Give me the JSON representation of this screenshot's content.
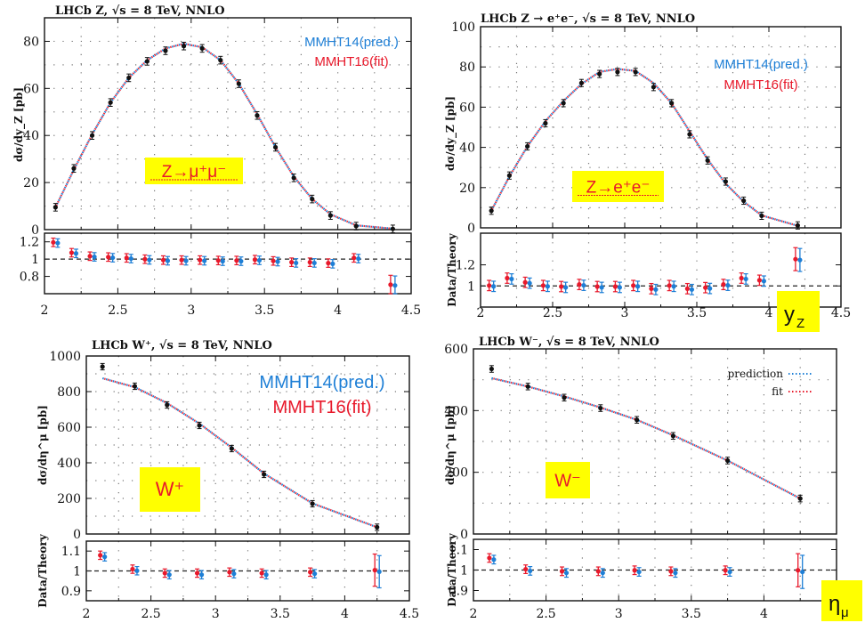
{
  "colors": {
    "pred": "#1e7fd6",
    "fit": "#e8192b",
    "badge": "#ffff00",
    "data": "#111111"
  },
  "badges": {
    "yz": "y",
    "yz_sub": "Z",
    "eta": "η",
    "eta_sub": "μ"
  },
  "chart_data": [
    {
      "id": "zmumu",
      "type": "line",
      "title": "LHCb Z, √s = 8 TeV, NNLO",
      "ylabel": "dσ/dy_Z [pb]",
      "ratio_ylabel": "",
      "xlim": [
        2,
        4.5
      ],
      "ylim": [
        0,
        90
      ],
      "ratio_ylim": [
        0.6,
        1.3
      ],
      "xticks": [
        "2",
        "2.5",
        "3",
        "3.5",
        "4",
        "4.5"
      ],
      "yticks": [
        "0",
        "20",
        "40",
        "60",
        "80"
      ],
      "ratio_yticks": [
        "0.8",
        "1",
        "1.2"
      ],
      "yticks_vals": [
        0,
        20,
        40,
        60,
        80
      ],
      "ratio_yticks_vals": [
        0.8,
        1,
        1.2
      ],
      "legend": [
        {
          "label": "MMHT14(pred.)",
          "color": "pred"
        },
        {
          "label": "MMHT16(fit)",
          "color": "fit"
        }
      ],
      "legend_style": "color",
      "process": "Z→μ⁺μ⁻",
      "x": [
        2.075,
        2.2,
        2.325,
        2.45,
        2.575,
        2.7,
        2.825,
        2.95,
        3.075,
        3.2,
        3.325,
        3.45,
        3.575,
        3.7,
        3.825,
        3.95,
        4.125,
        4.375
      ],
      "data": [
        9.5,
        26,
        40,
        54,
        64.5,
        71.5,
        76,
        78,
        77,
        72,
        62,
        48.5,
        35,
        22,
        13,
        6,
        1.5,
        0.3
      ],
      "theory": [
        9.5,
        25.5,
        40.5,
        54,
        64.5,
        72,
        77,
        79,
        77.5,
        72,
        62,
        49,
        35,
        22.5,
        13,
        6.5,
        1.8,
        0.4
      ],
      "ratio": [
        1.19,
        1.07,
        1.03,
        1.02,
        1.01,
        0.995,
        0.985,
        0.985,
        0.985,
        0.98,
        0.98,
        0.99,
        0.975,
        0.96,
        0.96,
        0.95,
        1.01,
        0.7
      ]
    },
    {
      "id": "zee",
      "type": "line",
      "title": "LHCb Z → e⁺e⁻, √s = 8 TeV, NNLO",
      "ylabel": "dσ/dy_Z [pb]",
      "ratio_ylabel": "Data/Theory",
      "xlim": [
        2,
        4.5
      ],
      "ylim": [
        0,
        100
      ],
      "ratio_ylim": [
        0.8,
        1.5
      ],
      "xticks": [
        "2",
        "2.5",
        "3",
        "3.5",
        "4",
        "4.5"
      ],
      "yticks": [
        "0",
        "20",
        "40",
        "60",
        "80",
        "100"
      ],
      "ratio_yticks": [
        "1",
        "1.2"
      ],
      "yticks_vals": [
        0,
        20,
        40,
        60,
        80,
        100
      ],
      "ratio_yticks_vals": [
        1,
        1.2
      ],
      "legend": [
        {
          "label": "MMHT14(pred.)",
          "color": "pred"
        },
        {
          "label": "MMHT16(fit)",
          "color": "fit"
        }
      ],
      "legend_style": "color",
      "process": "Z→e⁺e⁻",
      "x": [
        2.075,
        2.2,
        2.325,
        2.45,
        2.575,
        2.7,
        2.825,
        2.95,
        3.075,
        3.2,
        3.325,
        3.45,
        3.575,
        3.7,
        3.825,
        3.95,
        4.2
      ],
      "data": [
        8.5,
        26,
        40.5,
        52,
        62,
        72,
        76.5,
        77.5,
        77.5,
        70,
        62,
        46.5,
        33.5,
        23,
        13.5,
        6,
        1.2
      ],
      "theory": [
        8.5,
        25.5,
        40.5,
        53,
        63,
        71.5,
        77.5,
        79,
        78,
        72,
        62,
        48,
        34,
        22,
        13,
        6.2,
        1.0
      ],
      "ratio": [
        1.0,
        1.07,
        1.03,
        1.0,
        0.99,
        1.01,
        0.99,
        0.99,
        1.0,
        0.97,
        1.0,
        0.97,
        0.98,
        1.01,
        1.07,
        1.05,
        1.25
      ]
    },
    {
      "id": "wplus",
      "type": "line",
      "title": "LHCb W⁺, √s = 8 TeV, NNLO",
      "ylabel": "dσ/dη^μ [pb]",
      "ratio_ylabel": "Data/Theory",
      "xlim": [
        2,
        4.5
      ],
      "ylim": [
        0,
        1000
      ],
      "ratio_ylim": [
        0.85,
        1.15
      ],
      "xticks": [
        "2",
        "2.5",
        "3",
        "3.5",
        "4",
        "4.5"
      ],
      "yticks": [
        "0",
        "200",
        "400",
        "600",
        "800",
        "1000"
      ],
      "ratio_yticks": [
        "0.9",
        "1",
        "1.1"
      ],
      "yticks_vals": [
        0,
        200,
        400,
        600,
        800,
        1000
      ],
      "ratio_yticks_vals": [
        0.9,
        1,
        1.1
      ],
      "legend": [
        {
          "label": "MMHT14(pred.)",
          "color": "pred"
        },
        {
          "label": "MMHT16(fit)",
          "color": "fit"
        }
      ],
      "legend_style": "color",
      "process": "W⁺",
      "x": [
        2.125,
        2.375,
        2.625,
        2.875,
        3.125,
        3.375,
        3.75,
        4.25
      ],
      "data": [
        940,
        830,
        725,
        610,
        480,
        335,
        170,
        38
      ],
      "theory": [
        875,
        825,
        735,
        620,
        485,
        340,
        172,
        38
      ],
      "ratio": [
        1.075,
        1.005,
        0.985,
        0.985,
        0.99,
        0.985,
        0.99,
        1.0
      ]
    },
    {
      "id": "wminus",
      "type": "line",
      "title": "LHCb W⁻, √s = 8 TeV, NNLO",
      "ylabel": "dσ/dη^μ [pb]",
      "ratio_ylabel": "Data/Theory",
      "xlim": [
        2,
        4.5
      ],
      "ylim": [
        0,
        600
      ],
      "ratio_ylim": [
        0.85,
        1.15
      ],
      "xticks": [
        "2",
        "2.5",
        "3",
        "3.5",
        "4",
        "4.5"
      ],
      "yticks": [
        "0",
        "200",
        "400",
        "600"
      ],
      "ratio_yticks": [
        "0.9",
        "1",
        "1.1"
      ],
      "yticks_vals": [
        0,
        200,
        400,
        600
      ],
      "ratio_yticks_vals": [
        0.9,
        1,
        1.1
      ],
      "legend": [
        {
          "label": "prediction",
          "color": "pred"
        },
        {
          "label": "fit",
          "color": "fit"
        }
      ],
      "legend_style": "line",
      "process": "W⁻",
      "x": [
        2.125,
        2.375,
        2.625,
        2.875,
        3.125,
        3.375,
        3.75,
        4.25
      ],
      "data": [
        535,
        478,
        442,
        408,
        370,
        318,
        238,
        115
      ],
      "theory": [
        505,
        478,
        446,
        410,
        370,
        320,
        238,
        115
      ],
      "ratio": [
        1.055,
        1.0,
        0.99,
        0.99,
        0.995,
        0.99,
        0.995,
        0.995
      ]
    }
  ]
}
